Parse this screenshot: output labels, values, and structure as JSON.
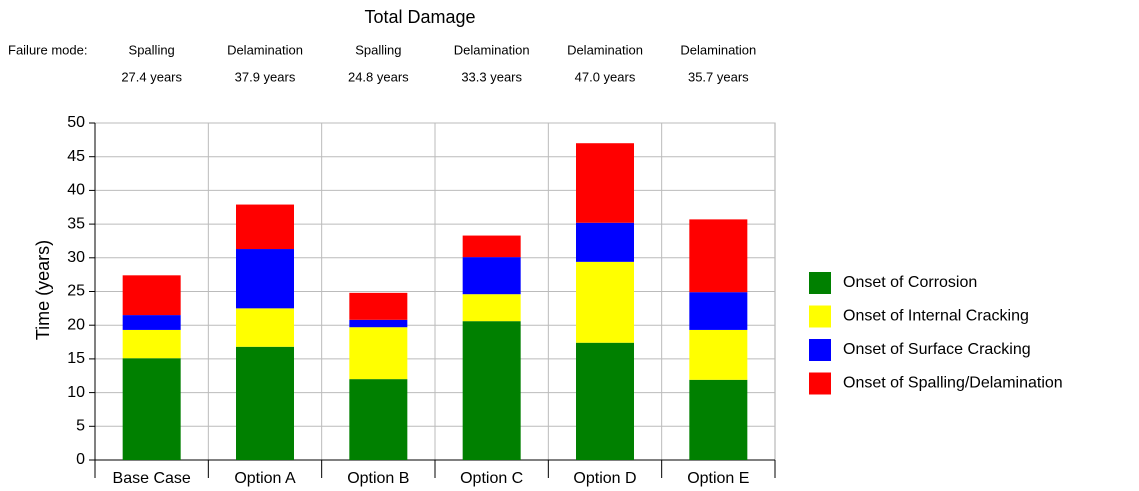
{
  "chart_data": {
    "type": "stacked_bar",
    "title": "Total Damage",
    "y_label": "Time (years)",
    "failure_mode_label": "Failure mode:",
    "failure_modes": [
      "Spalling",
      "Delamination",
      "Spalling",
      "Delamination",
      "Delamination",
      "Delamination"
    ],
    "failure_years": [
      "27.4 years",
      "37.9 years",
      "24.8 years",
      "33.3 years",
      "47.0 years",
      "35.7 years"
    ],
    "categories": [
      "Base Case",
      "Option A",
      "Option B",
      "Option C",
      "Option D",
      "Option E"
    ],
    "series": [
      {
        "name": "Onset of Corrosion",
        "color": "#008000",
        "values": [
          15.1,
          16.8,
          12.0,
          20.6,
          17.4,
          11.9
        ]
      },
      {
        "name": "Onset of Internal Cracking",
        "color": "#ffff00",
        "values": [
          4.2,
          5.7,
          7.7,
          4.0,
          12.0,
          7.4
        ]
      },
      {
        "name": "Onset of Surface Cracking",
        "color": "#0000ff",
        "values": [
          2.2,
          8.8,
          1.1,
          5.5,
          5.8,
          5.6
        ]
      },
      {
        "name": "Onset of Spalling/Delamination",
        "color": "#ff0000",
        "values": [
          5.9,
          6.6,
          4.0,
          3.2,
          11.8,
          10.8
        ]
      }
    ],
    "ylim": [
      0,
      50
    ],
    "yticks": [
      0,
      5,
      10,
      15,
      20,
      25,
      30,
      35,
      40,
      45,
      50
    ],
    "grid": true,
    "legend": "right"
  }
}
